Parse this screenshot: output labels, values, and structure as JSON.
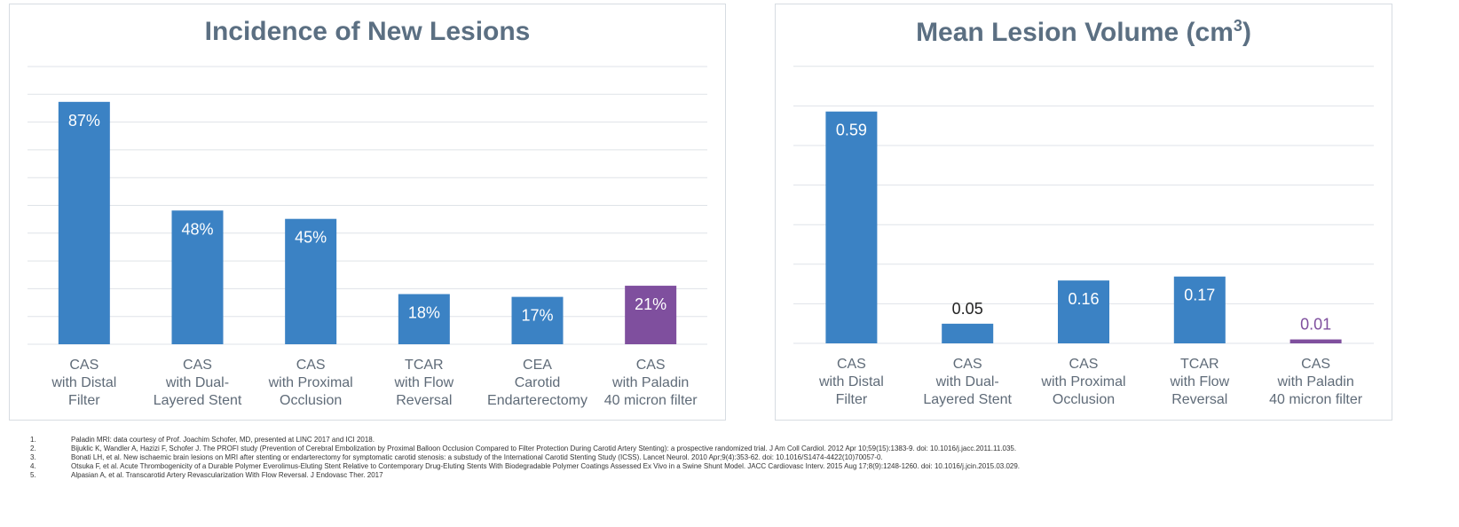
{
  "colors": {
    "bar_blue": "#3b82c4",
    "bar_purple": "#7f4f9e",
    "title": "#5b6f82",
    "axis_label": "#5f6b78",
    "grid": "#dfe3e8"
  },
  "chart_data": [
    {
      "type": "bar",
      "title": "Incidence of New Lesions",
      "categories": [
        "CAS\nwith Distal\nFilter",
        "CAS\nwith Dual-\nLayered Stent",
        "CAS\nwith Proximal\nOcclusion",
        "TCAR\nwith Flow\nReversal",
        "CEA\nCarotid\nEndarterectomy",
        "CAS\nwith Paladin\n40 micron filter"
      ],
      "values": [
        87,
        48,
        45,
        18,
        17,
        21
      ],
      "data_labels": [
        "87%",
        "48%",
        "45%",
        "18%",
        "17%",
        "21%"
      ],
      "bar_colors": [
        "#3b82c4",
        "#3b82c4",
        "#3b82c4",
        "#3b82c4",
        "#3b82c4",
        "#7f4f9e"
      ],
      "ylim": [
        0,
        100
      ],
      "grid": true
    },
    {
      "type": "bar",
      "title": "Mean Lesion Volume (cm",
      "title_sup": "3",
      "title_suffix": ")",
      "categories": [
        "CAS\nwith Distal\nFilter",
        "CAS\nwith Dual-\nLayered Stent",
        "CAS\nwith Proximal\nOcclusion",
        "TCAR\nwith Flow\nReversal",
        "CAS\nwith Paladin\n40 micron filter"
      ],
      "values": [
        0.59,
        0.05,
        0.16,
        0.17,
        0.01
      ],
      "data_labels": [
        "0.59",
        "0.05",
        "0.16",
        "0.17",
        "0.01"
      ],
      "bar_colors": [
        "#3b82c4",
        "#3b82c4",
        "#3b82c4",
        "#3b82c4",
        "#7f4f9e"
      ],
      "ylim": [
        0,
        0.7
      ],
      "grid": true
    }
  ],
  "footnotes": [
    {
      "num": "1.",
      "text": "Paladin MRI: data courtesy of Prof. Joachim Schofer, MD, presented at LINC 2017 and ICI 2018."
    },
    {
      "num": "2.",
      "text": "Bijuklic K, Wandler A, Hazizi F, Schofer J. The PROFI study (Prevention of Cerebral Embolization by Proximal Balloon Occlusion Compared to Filter Protection During Carotid Artery Stenting): a prospective randomized trial. J Am Coll Cardiol. 2012 Apr 10;59(15):1383-9. doi: 10.1016/j.jacc.2011.11.035."
    },
    {
      "num": "3.",
      "text": "Bonati LH, et al. New ischaemic brain lesions on MRI after stenting or endarterectomy for symptomatic carotid stenosis: a substudy of the International Carotid Stenting Study (ICSS). Lancet Neurol. 2010 Apr;9(4):353-62. doi: 10.1016/S1474-4422(10)70057-0."
    },
    {
      "num": "4.",
      "text": "Otsuka F, et al. Acute Thrombogenicity of a Durable Polymer Everolimus-Eluting Stent Relative to Contemporary Drug-Eluting Stents With Biodegradable Polymer Coatings Assessed Ex Vivo in a Swine Shunt Model. JACC Cardiovasc Interv. 2015 Aug 17;8(9):1248-1260. doi: 10.1016/j.jcin.2015.03.029."
    },
    {
      "num": "5.",
      "text": "Alpasian A, et al. Transcarotid Artery Revascularization With Flow Reversal. J Endovasc Ther. 2017"
    }
  ]
}
